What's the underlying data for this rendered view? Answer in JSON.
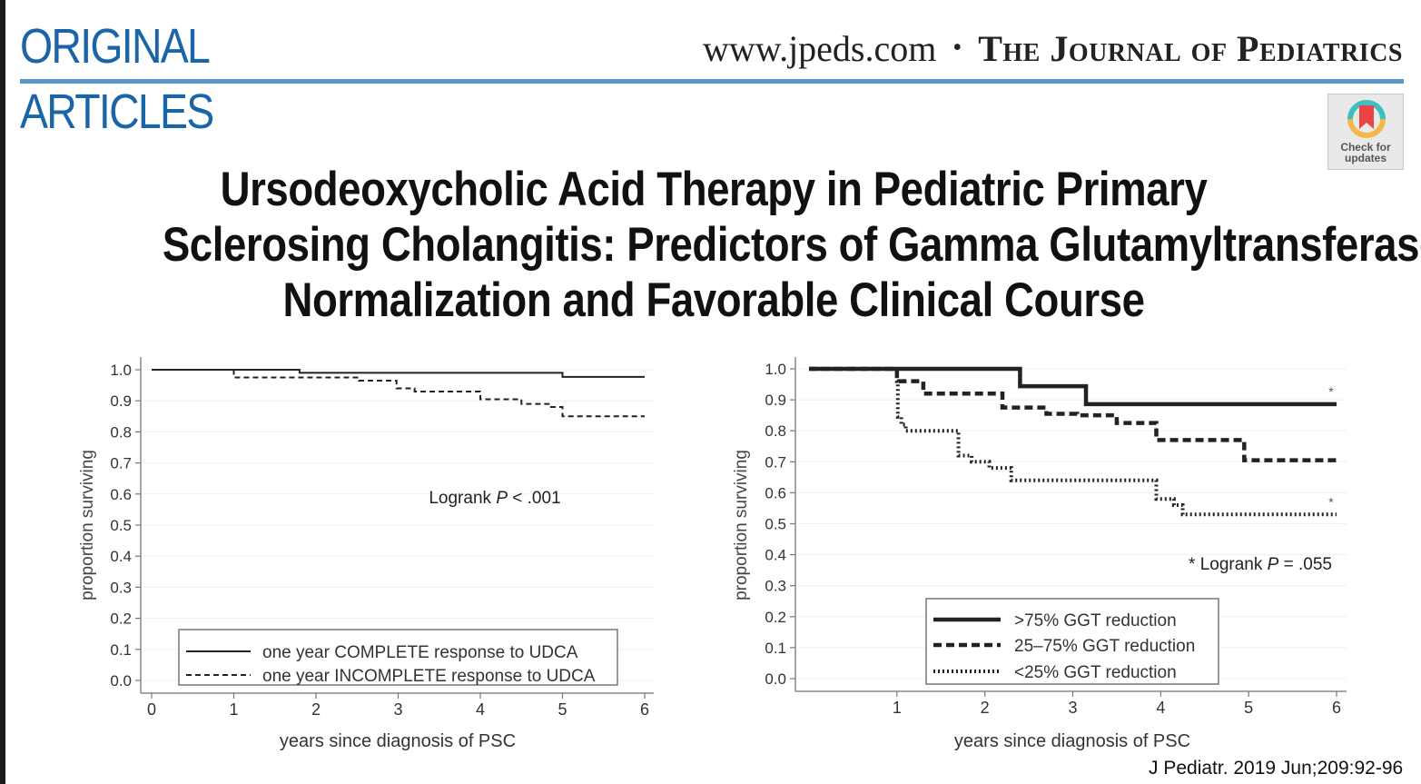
{
  "header": {
    "section_line1": "ORIGINAL",
    "section_line2": "ARTICLES",
    "website": "www.jpeds.com",
    "separator": "•",
    "journal_name": "The Journal of Pediatrics",
    "brand_color": "#1a64a8",
    "rule_color": "#5b95cb"
  },
  "badge": {
    "icon": "bookmark-ribbon-icon",
    "line1": "Check for",
    "line2": "updates"
  },
  "article": {
    "title_lines": [
      "Ursodeoxycholic Acid Therapy in Pediatric Primary",
      "Sclerosing Cholangitis: Predictors of Gamma Glutamyltransferase",
      "Normalization and Favorable Clinical Course"
    ]
  },
  "citation": "J Pediatr. 2019 Jun;209:92-96",
  "chart_data": [
    {
      "type": "line",
      "subtype": "kaplan-meier step",
      "xlabel": "years since diagnosis of PSC",
      "ylabel": "proportion surviving",
      "xlim": [
        0,
        6
      ],
      "ylim": [
        0,
        1
      ],
      "xticks": [
        "0",
        "1",
        "2",
        "3",
        "4",
        "5",
        "6"
      ],
      "yticks": [
        "0.0",
        "0.1",
        "0.2",
        "0.3",
        "0.4",
        "0.5",
        "0.6",
        "0.7",
        "0.8",
        "0.9",
        "1.0"
      ],
      "grid": true,
      "annotation": {
        "prefix": "Logrank ",
        "p": "P",
        "suffix": " < .001"
      },
      "legend_position": "bottom-center",
      "series": [
        {
          "name": "one year COMPLETE response to UDCA",
          "style": "solid",
          "x": [
            0,
            1.8,
            5.0,
            6.0
          ],
          "y": [
            1.0,
            0.99,
            0.977,
            0.977
          ]
        },
        {
          "name": "one year INCOMPLETE response to UDCA",
          "style": "dashed",
          "x": [
            0,
            1.0,
            2.52,
            2.98,
            3.2,
            4.0,
            4.5,
            4.85,
            5.0,
            6.0
          ],
          "y": [
            1.0,
            0.975,
            0.965,
            0.94,
            0.93,
            0.905,
            0.89,
            0.88,
            0.85,
            0.85
          ]
        }
      ]
    },
    {
      "type": "line",
      "subtype": "kaplan-meier step",
      "xlabel": "years since diagnosis of PSC",
      "ylabel": "proportion surviving",
      "xlim": [
        0,
        6
      ],
      "ylim": [
        0,
        1
      ],
      "xticks": [
        "1",
        "2",
        "3",
        "4",
        "5",
        "6"
      ],
      "yticks": [
        "0.0",
        "0.1",
        "0.2",
        "0.3",
        "0.4",
        "0.5",
        "0.6",
        "0.7",
        "0.8",
        "0.9",
        "1.0"
      ],
      "grid": true,
      "annotation": {
        "prefix": "* Logrank ",
        "p": "P",
        "suffix": " = .055"
      },
      "legend_position": "bottom-center",
      "series": [
        {
          "name": ">75% GGT reduction",
          "style": "solid-thick",
          "x": [
            0,
            2.4,
            3.15,
            6.0
          ],
          "y": [
            1.0,
            0.944,
            0.886,
            0.886
          ],
          "marker": "*"
        },
        {
          "name": "25–75% GGT reduction",
          "style": "dashed-thick",
          "x": [
            0,
            1.0,
            1.3,
            2.2,
            2.7,
            3.05,
            3.5,
            3.95,
            4.95,
            6.0
          ],
          "y": [
            1.0,
            0.96,
            0.92,
            0.875,
            0.855,
            0.85,
            0.825,
            0.77,
            0.705,
            0.705
          ]
        },
        {
          "name": "<25% GGT reduction",
          "style": "dotted",
          "x": [
            0,
            1.0,
            1.01,
            1.05,
            1.1,
            1.7,
            1.85,
            2.05,
            2.3,
            3.95,
            4.15,
            4.25,
            6.0
          ],
          "y": [
            1.0,
            0.96,
            0.845,
            0.82,
            0.8,
            0.72,
            0.7,
            0.68,
            0.64,
            0.58,
            0.56,
            0.53,
            0.53
          ],
          "marker": "*"
        }
      ]
    }
  ]
}
